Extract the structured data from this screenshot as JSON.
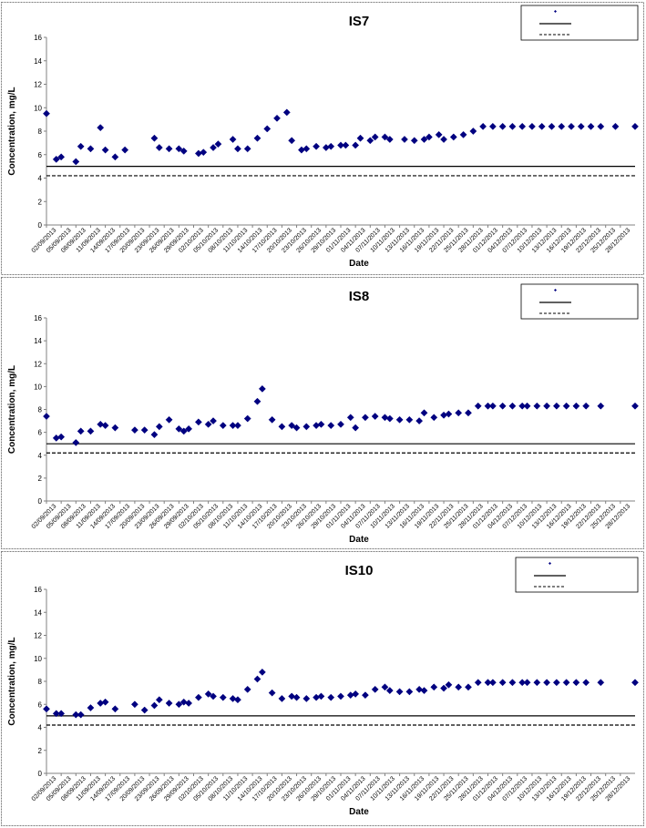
{
  "chart_data": [
    {
      "type": "scatter",
      "title": "IS7",
      "xlabel": "Date",
      "ylabel": "Concentration, mg/L",
      "ylim": [
        0,
        16
      ],
      "yticks": [
        0,
        2,
        4,
        6,
        8,
        10,
        12,
        14,
        16
      ],
      "xlim": [
        "02/09/2013",
        "31/12/2013"
      ],
      "x_tick_labels": [
        "02/09/2013",
        "05/09/2013",
        "08/09/2013",
        "11/09/2013",
        "14/09/2013",
        "17/09/2013",
        "20/09/2013",
        "23/09/2013",
        "26/09/2013",
        "29/09/2013",
        "02/10/2013",
        "05/10/2013",
        "08/10/2013",
        "11/10/2013",
        "14/10/2013",
        "17/10/2013",
        "20/10/2013",
        "23/10/2013",
        "26/10/2013",
        "29/10/2013",
        "01/11/2013",
        "04/11/2013",
        "07/11/2013",
        "10/11/2013",
        "13/11/2013",
        "16/11/2013",
        "19/11/2013",
        "22/11/2013",
        "25/11/2013",
        "28/11/2013",
        "01/12/2013",
        "04/12/2013",
        "07/12/2013",
        "10/12/2013",
        "13/12/2013",
        "16/12/2013",
        "19/12/2013",
        "22/12/2013",
        "25/12/2013",
        "28/12/2013"
      ],
      "grid": false,
      "legend_position": "top-right",
      "series": [
        {
          "marker": "diamond",
          "color": "#000080",
          "x": [
            "02/09/2013",
            "04/09/2013",
            "05/09/2013",
            "08/09/2013",
            "09/09/2013",
            "11/09/2013",
            "13/09/2013",
            "14/09/2013",
            "16/09/2013",
            "18/09/2013",
            "24/09/2013",
            "25/09/2013",
            "27/09/2013",
            "29/09/2013",
            "30/09/2013",
            "03/10/2013",
            "04/10/2013",
            "06/10/2013",
            "07/10/2013",
            "10/10/2013",
            "11/10/2013",
            "13/10/2013",
            "15/10/2013",
            "17/10/2013",
            "19/10/2013",
            "21/10/2013",
            "22/10/2013",
            "24/10/2013",
            "25/10/2013",
            "27/10/2013",
            "29/10/2013",
            "30/10/2013",
            "01/11/2013",
            "02/11/2013",
            "04/11/2013",
            "05/11/2013",
            "07/11/2013",
            "08/11/2013",
            "10/11/2013",
            "11/11/2013",
            "14/11/2013",
            "16/11/2013",
            "18/11/2013",
            "19/11/2013",
            "21/11/2013",
            "22/11/2013",
            "24/11/2013",
            "26/11/2013",
            "28/11/2013",
            "30/11/2013",
            "02/12/2013",
            "04/12/2013",
            "06/12/2013",
            "08/12/2013",
            "10/12/2013",
            "12/12/2013",
            "14/12/2013",
            "16/12/2013",
            "18/12/2013",
            "20/12/2013",
            "22/12/2013",
            "24/12/2013",
            "27/12/2013",
            "31/12/2013"
          ],
          "y": [
            9.5,
            5.6,
            5.8,
            5.4,
            6.7,
            6.5,
            8.3,
            6.4,
            5.8,
            6.4,
            7.4,
            6.6,
            6.5,
            6.5,
            6.3,
            6.1,
            6.2,
            6.6,
            6.9,
            7.3,
            6.5,
            6.5,
            7.4,
            8.2,
            9.1,
            9.6,
            7.2,
            6.4,
            6.5,
            6.7,
            6.6,
            6.7,
            6.8,
            6.8,
            6.8,
            7.4,
            7.2,
            7.5,
            7.5,
            7.3,
            7.3,
            7.2,
            7.3,
            7.5,
            7.7,
            7.3,
            7.5,
            7.7,
            8.0,
            8.4,
            8.4,
            8.4,
            8.4,
            8.4,
            8.4,
            8.4,
            8.4,
            8.4,
            8.4,
            8.4,
            8.4,
            8.4,
            8.4,
            8.4
          ]
        }
      ],
      "reference_lines": [
        {
          "style": "solid",
          "y": 5.0
        },
        {
          "style": "dashed",
          "y": 4.2
        }
      ]
    },
    {
      "type": "scatter",
      "title": "IS8",
      "xlabel": "Date",
      "ylabel": "Concentration, mg/L",
      "ylim": [
        0,
        16
      ],
      "yticks": [
        0,
        2,
        4,
        6,
        8,
        10,
        12,
        14,
        16
      ],
      "xlim": [
        "02/09/2013",
        "31/12/2013"
      ],
      "x_tick_labels": [
        "02/09/2013",
        "05/09/2013",
        "08/09/2013",
        "11/09/2013",
        "14/09/2013",
        "17/09/2013",
        "20/09/2013",
        "23/09/2013",
        "26/09/2013",
        "29/09/2013",
        "02/10/2013",
        "05/10/2013",
        "08/10/2013",
        "11/10/2013",
        "14/10/2013",
        "17/10/2013",
        "20/10/2013",
        "23/10/2013",
        "26/10/2013",
        "29/10/2013",
        "01/11/2013",
        "04/11/2013",
        "07/11/2013",
        "10/11/2013",
        "13/11/2013",
        "16/11/2013",
        "19/11/2013",
        "22/11/2013",
        "25/11/2013",
        "28/11/2013",
        "01/12/2013",
        "04/12/2013",
        "07/12/2013",
        "10/12/2013",
        "13/12/2013",
        "16/12/2013",
        "19/12/2013",
        "22/12/2013",
        "25/12/2013",
        "28/12/2013"
      ],
      "grid": false,
      "legend_position": "top-right",
      "series": [
        {
          "marker": "diamond",
          "color": "#000080",
          "x": [
            "02/09/2013",
            "04/09/2013",
            "05/09/2013",
            "08/09/2013",
            "09/09/2013",
            "11/09/2013",
            "13/09/2013",
            "14/09/2013",
            "16/09/2013",
            "20/09/2013",
            "22/09/2013",
            "24/09/2013",
            "25/09/2013",
            "27/09/2013",
            "29/09/2013",
            "30/09/2013",
            "01/10/2013",
            "03/10/2013",
            "05/10/2013",
            "06/10/2013",
            "08/10/2013",
            "10/10/2013",
            "11/10/2013",
            "13/10/2013",
            "15/10/2013",
            "16/10/2013",
            "18/10/2013",
            "20/10/2013",
            "22/10/2013",
            "23/10/2013",
            "25/10/2013",
            "27/10/2013",
            "28/10/2013",
            "30/10/2013",
            "01/11/2013",
            "03/11/2013",
            "04/11/2013",
            "06/11/2013",
            "08/11/2013",
            "10/11/2013",
            "11/11/2013",
            "13/11/2013",
            "15/11/2013",
            "17/11/2013",
            "18/11/2013",
            "20/11/2013",
            "22/11/2013",
            "23/11/2013",
            "25/11/2013",
            "27/11/2013",
            "29/11/2013",
            "01/12/2013",
            "02/12/2013",
            "04/12/2013",
            "06/12/2013",
            "08/12/2013",
            "09/12/2013",
            "11/12/2013",
            "13/12/2013",
            "15/12/2013",
            "17/12/2013",
            "19/12/2013",
            "21/12/2013",
            "24/12/2013",
            "31/12/2013"
          ],
          "y": [
            7.4,
            5.5,
            5.6,
            5.1,
            6.1,
            6.1,
            6.7,
            6.6,
            6.4,
            6.2,
            6.2,
            5.8,
            6.5,
            7.1,
            6.3,
            6.1,
            6.3,
            6.9,
            6.7,
            7.0,
            6.6,
            6.6,
            6.6,
            7.2,
            8.7,
            9.8,
            7.1,
            6.5,
            6.6,
            6.4,
            6.5,
            6.6,
            6.7,
            6.6,
            6.7,
            7.3,
            6.4,
            7.3,
            7.4,
            7.3,
            7.2,
            7.1,
            7.1,
            7.0,
            7.7,
            7.3,
            7.5,
            7.6,
            7.7,
            7.7,
            8.3,
            8.3,
            8.3,
            8.3,
            8.3,
            8.3,
            8.3,
            8.3,
            8.3,
            8.3,
            8.3,
            8.3,
            8.3,
            8.3,
            8.3
          ]
        }
      ],
      "reference_lines": [
        {
          "style": "solid",
          "y": 5.0
        },
        {
          "style": "dashed",
          "y": 4.2
        }
      ]
    },
    {
      "type": "scatter",
      "title": "IS10",
      "xlabel": "Date",
      "ylabel": "Concentration, mg/L",
      "ylim": [
        0,
        16
      ],
      "yticks": [
        0,
        2,
        4,
        6,
        8,
        10,
        12,
        14,
        16
      ],
      "xlim": [
        "02/09/2013",
        "31/12/2013"
      ],
      "x_tick_labels": [
        "02/09/2013",
        "05/09/2013",
        "08/09/2013",
        "11/09/2013",
        "14/09/2013",
        "17/09/2013",
        "20/09/2013",
        "23/09/2013",
        "26/09/2013",
        "29/09/2013",
        "02/10/2013",
        "05/10/2013",
        "08/10/2013",
        "11/10/2013",
        "14/10/2013",
        "17/10/2013",
        "20/10/2013",
        "23/10/2013",
        "26/10/2013",
        "29/10/2013",
        "01/11/2013",
        "04/11/2013",
        "07/11/2013",
        "10/11/2013",
        "13/11/2013",
        "16/11/2013",
        "19/11/2013",
        "22/11/2013",
        "25/11/2013",
        "28/11/2013",
        "01/12/2013",
        "04/12/2013",
        "07/12/2013",
        "10/12/2013",
        "13/12/2013",
        "16/12/2013",
        "19/12/2013",
        "22/12/2013",
        "25/12/2013",
        "28/12/2013"
      ],
      "grid": false,
      "legend_position": "top-right",
      "series": [
        {
          "marker": "diamond",
          "color": "#000080",
          "x": [
            "02/09/2013",
            "04/09/2013",
            "05/09/2013",
            "08/09/2013",
            "09/09/2013",
            "11/09/2013",
            "13/09/2013",
            "14/09/2013",
            "16/09/2013",
            "20/09/2013",
            "22/09/2013",
            "24/09/2013",
            "25/09/2013",
            "27/09/2013",
            "29/09/2013",
            "30/09/2013",
            "01/10/2013",
            "03/10/2013",
            "05/10/2013",
            "06/10/2013",
            "08/10/2013",
            "10/10/2013",
            "11/10/2013",
            "13/10/2013",
            "15/10/2013",
            "16/10/2013",
            "18/10/2013",
            "20/10/2013",
            "22/10/2013",
            "23/10/2013",
            "25/10/2013",
            "27/10/2013",
            "28/10/2013",
            "30/10/2013",
            "01/11/2013",
            "03/11/2013",
            "04/11/2013",
            "06/11/2013",
            "08/11/2013",
            "10/11/2013",
            "11/11/2013",
            "13/11/2013",
            "15/11/2013",
            "17/11/2013",
            "18/11/2013",
            "20/11/2013",
            "22/11/2013",
            "23/11/2013",
            "25/11/2013",
            "27/11/2013",
            "29/11/2013",
            "01/12/2013",
            "02/12/2013",
            "04/12/2013",
            "06/12/2013",
            "08/12/2013",
            "09/12/2013",
            "11/12/2013",
            "13/12/2013",
            "15/12/2013",
            "17/12/2013",
            "19/12/2013",
            "21/12/2013",
            "24/12/2013",
            "31/12/2013"
          ],
          "y": [
            5.6,
            5.2,
            5.2,
            5.1,
            5.1,
            5.7,
            6.1,
            6.2,
            5.6,
            6.0,
            5.5,
            5.9,
            6.4,
            6.1,
            6.0,
            6.2,
            6.1,
            6.6,
            6.9,
            6.7,
            6.6,
            6.5,
            6.4,
            7.3,
            8.2,
            8.8,
            7.0,
            6.5,
            6.7,
            6.6,
            6.5,
            6.6,
            6.7,
            6.6,
            6.7,
            6.8,
            6.9,
            6.8,
            7.3,
            7.5,
            7.2,
            7.1,
            7.1,
            7.3,
            7.2,
            7.5,
            7.4,
            7.7,
            7.5,
            7.5,
            7.9,
            7.9,
            7.9,
            7.9,
            7.9,
            7.9,
            7.9,
            7.9,
            7.9,
            7.9,
            7.9,
            7.9,
            7.9,
            7.9,
            7.9
          ]
        }
      ],
      "reference_lines": [
        {
          "style": "solid",
          "y": 5.0
        },
        {
          "style": "dashed",
          "y": 4.2
        }
      ]
    }
  ]
}
